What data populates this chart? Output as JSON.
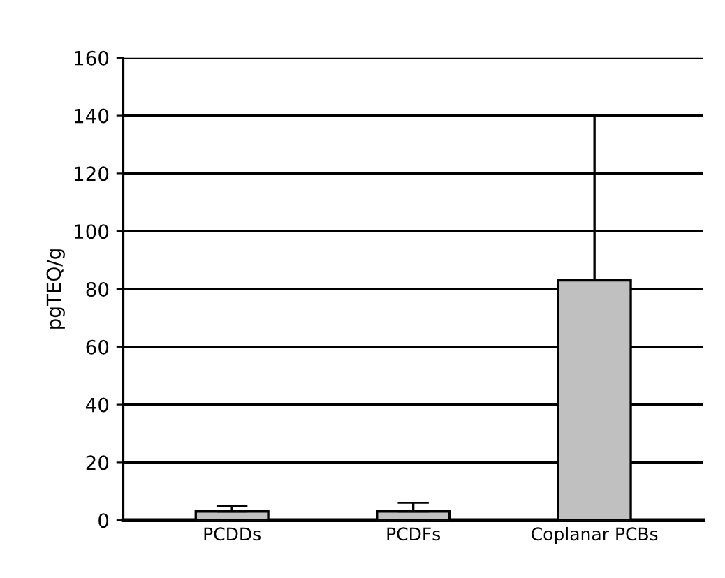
{
  "chart_data": {
    "type": "bar",
    "ylabel": "pgTEQ/g",
    "categories": [
      "PCDDs",
      "PCDFs",
      "Coplanar PCBs"
    ],
    "values": [
      3,
      3,
      83
    ],
    "errors": [
      [
        3,
        5
      ],
      [
        3,
        6
      ],
      [
        83,
        140
      ]
    ],
    "color": "#c0c0c0",
    "ylim": [
      0,
      160
    ],
    "yticks": [
      0,
      20,
      40,
      60,
      80,
      100,
      120,
      140,
      160
    ],
    "grid": "y"
  }
}
